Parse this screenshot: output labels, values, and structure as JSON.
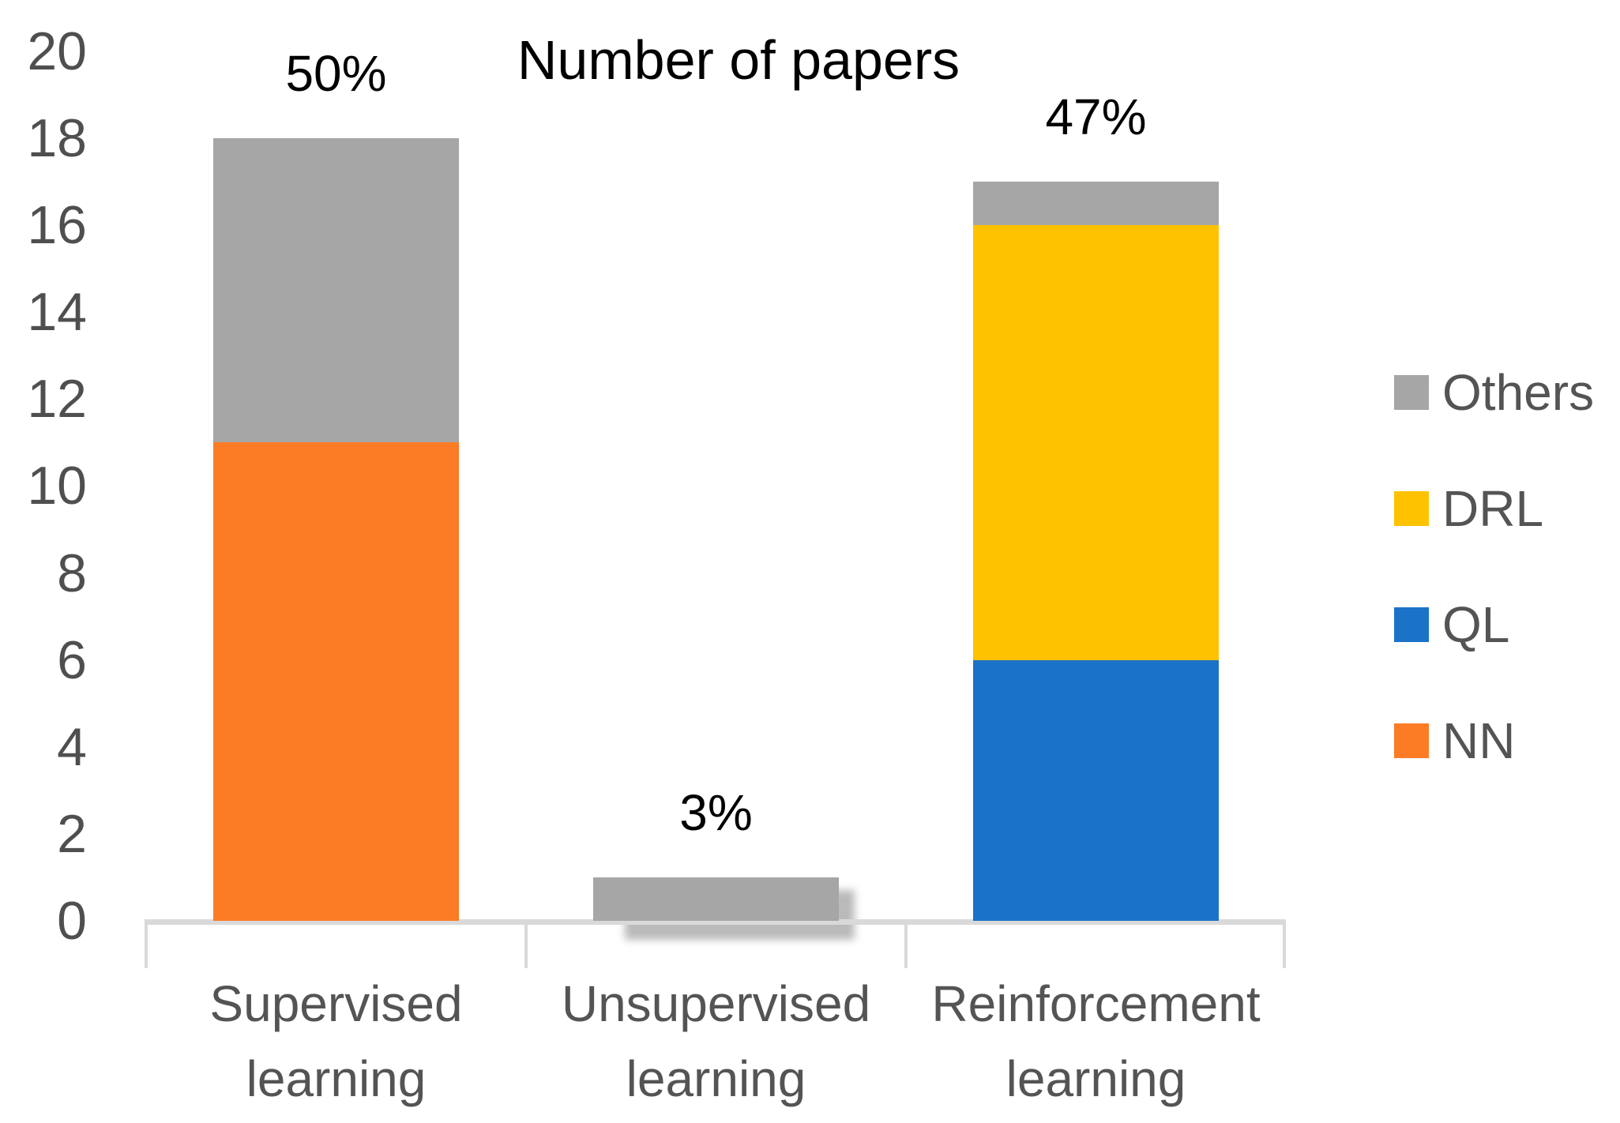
{
  "chart_data": {
    "type": "bar",
    "stacked": true,
    "title": "Number of papers",
    "categories": [
      "Supervised learning",
      "Unsupervised learning",
      "Reinforcement learning"
    ],
    "category_label_lines": [
      [
        "Supervised",
        "learning"
      ],
      [
        "Unsupervised",
        "learning"
      ],
      [
        "Reinforcement",
        "learning"
      ]
    ],
    "series": [
      {
        "name": "NN",
        "color": "#FB7C25",
        "values": [
          11,
          0,
          0
        ]
      },
      {
        "name": "QL",
        "color": "#1B73C7",
        "values": [
          0,
          0,
          6
        ]
      },
      {
        "name": "DRL",
        "color": "#FEC200",
        "values": [
          0,
          0,
          10
        ]
      },
      {
        "name": "Others",
        "color": "#A6A6A6",
        "values": [
          7,
          1,
          1
        ]
      }
    ],
    "stack_totals": [
      18,
      1,
      17
    ],
    "bar_labels": [
      "50%",
      "3%",
      "47%"
    ],
    "ylabel": "",
    "xlabel": "",
    "ylim": [
      0,
      20
    ],
    "y_ticks": [
      0,
      2,
      4,
      6,
      8,
      10,
      12,
      14,
      16,
      18,
      20
    ],
    "grid": false,
    "legend_position": "right",
    "legend": [
      {
        "label": "Others",
        "color": "#A6A6A6"
      },
      {
        "label": "DRL",
        "color": "#FEC200"
      },
      {
        "label": "QL",
        "color": "#1B73C7"
      },
      {
        "label": "NN",
        "color": "#FB7C25"
      }
    ],
    "axis_line_color": "#D9D9D9",
    "axis_text_color": "#4F4F4F",
    "label_text_color": "#545454"
  }
}
